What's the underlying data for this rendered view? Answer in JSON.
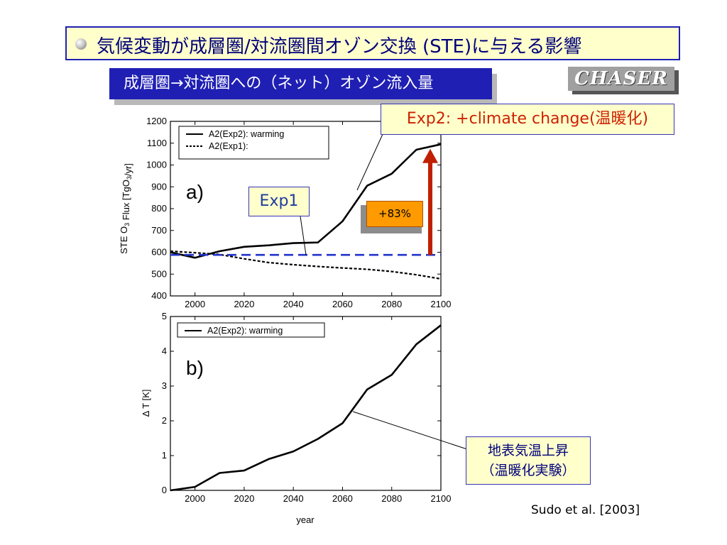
{
  "slide": {
    "title": "気候変動が成層圏/対流圏間オゾン交換 (STE)に与える影響",
    "subtitle": "成層圏→対流圏への（ネット）オゾン流入量",
    "logo_text": "CHASER",
    "citation": "Sudo et al. [2003]"
  },
  "annotations": {
    "exp2": "Exp2: +climate change(温暖化)",
    "exp1": "Exp1",
    "percent": "+83%",
    "warming_line1": "地表気温上昇",
    "warming_line2": "（温暖化実験）"
  },
  "colors": {
    "title_border": "#1f1fb4",
    "title_text": "#00007a",
    "banner_bg": "#1f1fb4",
    "box_bg": "#ffffcc",
    "exp2_text": "#cc2200",
    "exp1_line": "#2233cc",
    "arrow": "#c02000",
    "percent_bg": "#ff9a00"
  },
  "chart_data": [
    {
      "type": "line",
      "panel_label": "a)",
      "xlabel": "",
      "ylabel": "STE O3 Flux [TgO3/yr]",
      "xlim": [
        1990,
        2100
      ],
      "ylim": [
        400,
        1200
      ],
      "xticks": [
        2000,
        2020,
        2040,
        2060,
        2080,
        2100
      ],
      "yticks": [
        400,
        500,
        600,
        700,
        800,
        900,
        1000,
        1100,
        1200
      ],
      "legend_position": "top-left",
      "series": [
        {
          "name": "A2(Exp2): warming",
          "style": "solid",
          "x": [
            1990,
            2000,
            2010,
            2020,
            2030,
            2040,
            2050,
            2060,
            2070,
            2080,
            2090,
            2100
          ],
          "y": [
            600,
            575,
            605,
            625,
            632,
            642,
            645,
            742,
            905,
            960,
            1070,
            1095
          ]
        },
        {
          "name": "A2(Exp1):",
          "style": "dashed",
          "x": [
            1990,
            2000,
            2010,
            2020,
            2030,
            2040,
            2050,
            2060,
            2070,
            2080,
            2090,
            2100
          ],
          "y": [
            605,
            598,
            590,
            570,
            553,
            543,
            535,
            528,
            522,
            512,
            497,
            478
          ]
        }
      ],
      "reference_line_y": 588
    },
    {
      "type": "line",
      "panel_label": "b)",
      "xlabel": "year",
      "ylabel": "Δ T [K]",
      "xlim": [
        1990,
        2100
      ],
      "ylim": [
        0,
        5
      ],
      "xticks": [
        2000,
        2020,
        2040,
        2060,
        2080,
        2100
      ],
      "yticks": [
        0,
        1,
        2,
        3,
        4,
        5
      ],
      "legend_position": "top-left",
      "series": [
        {
          "name": "A2(Exp2): warming",
          "style": "solid",
          "x": [
            1990,
            2000,
            2010,
            2020,
            2030,
            2040,
            2050,
            2060,
            2070,
            2080,
            2090,
            2100
          ],
          "y": [
            0,
            0.1,
            0.5,
            0.57,
            0.9,
            1.12,
            1.48,
            1.93,
            2.9,
            3.32,
            4.2,
            4.75
          ]
        }
      ]
    }
  ]
}
